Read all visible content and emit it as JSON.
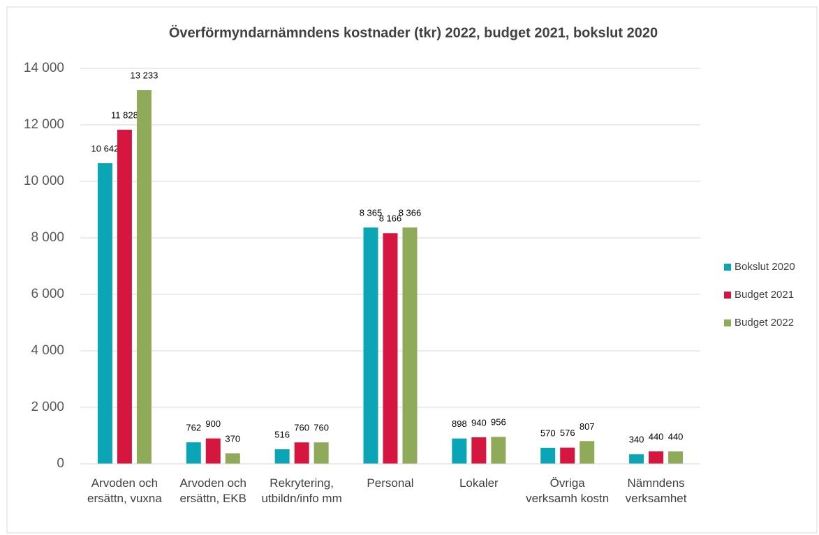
{
  "chart_data": {
    "type": "bar",
    "title": "Överförmyndarnämndens kostnader (tkr) 2022, budget 2021, bokslut 2020",
    "categories": [
      "Arvoden och ersättn, vuxna",
      "Arvoden och ersättn, EKB",
      "Rekrytering, utbildn/info mm",
      "Personal",
      "Lokaler",
      "Övriga verksamh kostn",
      "Nämndens verksamhet"
    ],
    "series": [
      {
        "name": "Bokslut 2020",
        "color": "#0aa6b6",
        "values": [
          10642,
          762,
          516,
          8365,
          898,
          570,
          340
        ],
        "value_labels": [
          "10 642",
          "762",
          "516",
          "8 365",
          "898",
          "570",
          "340"
        ]
      },
      {
        "name": "Budget 2021",
        "color": "#d5173f",
        "values": [
          11828,
          900,
          760,
          8166,
          940,
          576,
          440
        ],
        "value_labels": [
          "11 828",
          "900",
          "760",
          "8 166",
          "940",
          "576",
          "440"
        ]
      },
      {
        "name": "Budget 2022",
        "color": "#8faa58",
        "values": [
          13233,
          370,
          760,
          8366,
          956,
          807,
          440
        ],
        "value_labels": [
          "13 233",
          "370",
          "760",
          "8 366",
          "956",
          "807",
          "440"
        ]
      }
    ],
    "ylim": [
      0,
      14000
    ],
    "yticks": [
      0,
      {
        "value": 2000,
        "label": "2 000"
      },
      {
        "value": 4000,
        "label": "4 000"
      },
      {
        "value": 6000,
        "label": "6 000"
      },
      {
        "value": 8000,
        "label": "8 000"
      },
      {
        "value": 10000,
        "label": "10 000"
      },
      {
        "value": 12000,
        "label": "12 000"
      },
      {
        "value": 14000,
        "label": "14 000"
      }
    ],
    "grid": true,
    "legend": "right"
  }
}
